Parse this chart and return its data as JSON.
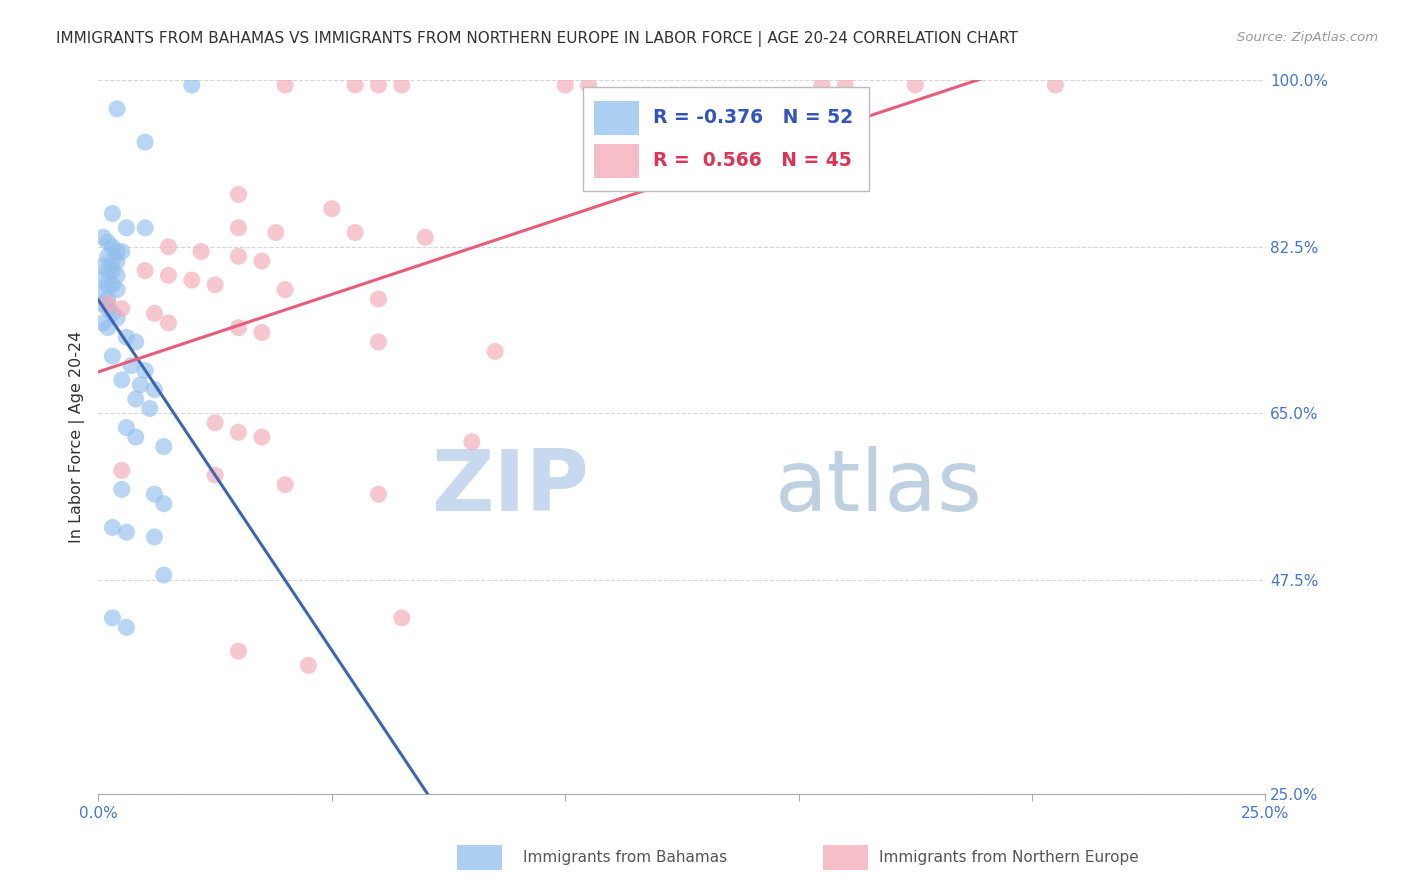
{
  "title": "IMMIGRANTS FROM BAHAMAS VS IMMIGRANTS FROM NORTHERN EUROPE IN LABOR FORCE | AGE 20-24 CORRELATION CHART",
  "source": "Source: ZipAtlas.com",
  "ylabel": "In Labor Force | Age 20-24",
  "xlim": [
    0.0,
    0.25
  ],
  "ylim": [
    0.25,
    1.0
  ],
  "xtick_positions": [
    0.0,
    0.05,
    0.1,
    0.15,
    0.2,
    0.25
  ],
  "xticklabels": [
    "0.0%",
    "",
    "",
    "",
    "",
    "25.0%"
  ],
  "ytick_positions": [
    0.25,
    0.475,
    0.65,
    0.825,
    1.0
  ],
  "ytick_labels_right": [
    "25.0%",
    "47.5%",
    "65.0%",
    "82.5%",
    "100.0%"
  ],
  "blue_R": -0.376,
  "blue_N": 52,
  "pink_R": 0.566,
  "pink_N": 45,
  "blue_color": "#92BFED",
  "pink_color": "#F4A9B8",
  "blue_line_color": "#3C67B0",
  "pink_line_color": "#E85C7A",
  "blue_scatter": [
    [
      0.004,
      0.97
    ],
    [
      0.01,
      0.935
    ],
    [
      0.02,
      0.995
    ],
    [
      0.003,
      0.86
    ],
    [
      0.006,
      0.845
    ],
    [
      0.01,
      0.845
    ],
    [
      0.001,
      0.835
    ],
    [
      0.002,
      0.83
    ],
    [
      0.003,
      0.825
    ],
    [
      0.004,
      0.82
    ],
    [
      0.005,
      0.82
    ],
    [
      0.002,
      0.815
    ],
    [
      0.003,
      0.81
    ],
    [
      0.004,
      0.81
    ],
    [
      0.001,
      0.805
    ],
    [
      0.002,
      0.8
    ],
    [
      0.003,
      0.8
    ],
    [
      0.004,
      0.795
    ],
    [
      0.001,
      0.79
    ],
    [
      0.002,
      0.785
    ],
    [
      0.003,
      0.785
    ],
    [
      0.004,
      0.78
    ],
    [
      0.001,
      0.775
    ],
    [
      0.002,
      0.77
    ],
    [
      0.001,
      0.765
    ],
    [
      0.002,
      0.76
    ],
    [
      0.003,
      0.755
    ],
    [
      0.004,
      0.75
    ],
    [
      0.001,
      0.745
    ],
    [
      0.002,
      0.74
    ],
    [
      0.006,
      0.73
    ],
    [
      0.008,
      0.725
    ],
    [
      0.003,
      0.71
    ],
    [
      0.007,
      0.7
    ],
    [
      0.01,
      0.695
    ],
    [
      0.005,
      0.685
    ],
    [
      0.009,
      0.68
    ],
    [
      0.012,
      0.675
    ],
    [
      0.008,
      0.665
    ],
    [
      0.011,
      0.655
    ],
    [
      0.006,
      0.635
    ],
    [
      0.008,
      0.625
    ],
    [
      0.014,
      0.615
    ],
    [
      0.005,
      0.57
    ],
    [
      0.012,
      0.565
    ],
    [
      0.014,
      0.555
    ],
    [
      0.003,
      0.53
    ],
    [
      0.006,
      0.525
    ],
    [
      0.012,
      0.52
    ],
    [
      0.003,
      0.435
    ],
    [
      0.006,
      0.425
    ],
    [
      0.014,
      0.48
    ]
  ],
  "pink_scatter": [
    [
      0.04,
      0.995
    ],
    [
      0.055,
      0.995
    ],
    [
      0.06,
      0.995
    ],
    [
      0.065,
      0.995
    ],
    [
      0.1,
      0.995
    ],
    [
      0.105,
      0.995
    ],
    [
      0.155,
      0.995
    ],
    [
      0.16,
      0.995
    ],
    [
      0.175,
      0.995
    ],
    [
      0.205,
      0.995
    ],
    [
      0.03,
      0.88
    ],
    [
      0.05,
      0.865
    ],
    [
      0.03,
      0.845
    ],
    [
      0.038,
      0.84
    ],
    [
      0.055,
      0.84
    ],
    [
      0.07,
      0.835
    ],
    [
      0.015,
      0.825
    ],
    [
      0.022,
      0.82
    ],
    [
      0.03,
      0.815
    ],
    [
      0.035,
      0.81
    ],
    [
      0.01,
      0.8
    ],
    [
      0.015,
      0.795
    ],
    [
      0.02,
      0.79
    ],
    [
      0.025,
      0.785
    ],
    [
      0.04,
      0.78
    ],
    [
      0.06,
      0.77
    ],
    [
      0.002,
      0.765
    ],
    [
      0.005,
      0.76
    ],
    [
      0.012,
      0.755
    ],
    [
      0.015,
      0.745
    ],
    [
      0.03,
      0.74
    ],
    [
      0.035,
      0.735
    ],
    [
      0.06,
      0.725
    ],
    [
      0.085,
      0.715
    ],
    [
      0.025,
      0.64
    ],
    [
      0.03,
      0.63
    ],
    [
      0.035,
      0.625
    ],
    [
      0.08,
      0.62
    ],
    [
      0.005,
      0.59
    ],
    [
      0.025,
      0.585
    ],
    [
      0.04,
      0.575
    ],
    [
      0.06,
      0.565
    ],
    [
      0.065,
      0.435
    ],
    [
      0.03,
      0.4
    ],
    [
      0.045,
      0.385
    ]
  ],
  "watermark_zip": "ZIP",
  "watermark_atlas": "atlas",
  "bg_color": "#FFFFFF",
  "grid_color": "#CCCCCC",
  "legend_label_blue": "Immigrants from Bahamas",
  "legend_label_pink": "Immigrants from Northern Europe"
}
